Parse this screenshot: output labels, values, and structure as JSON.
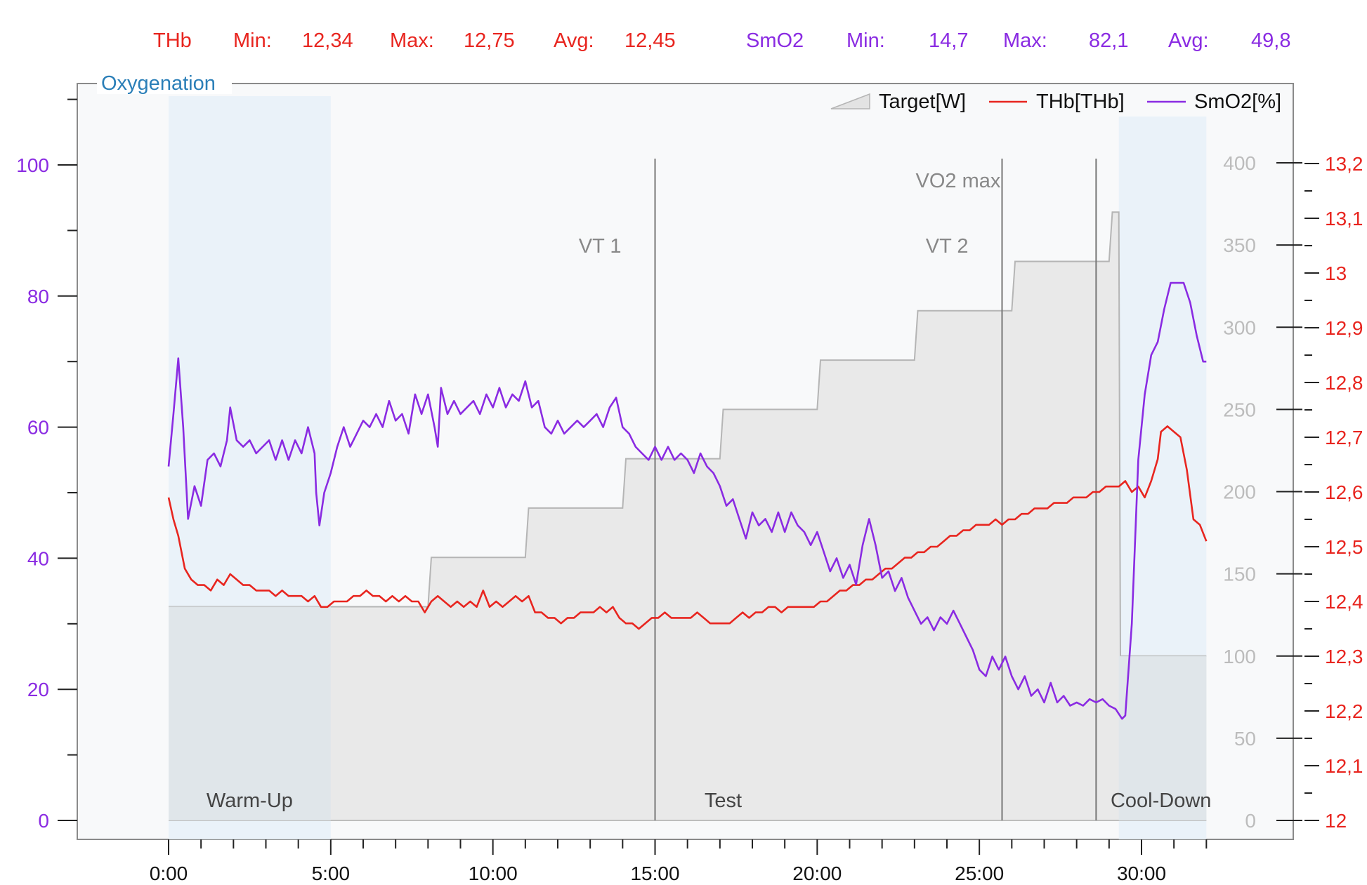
{
  "stats": {
    "thb": {
      "label": "THb",
      "min_label": "Min:",
      "min": "12,34",
      "max_label": "Max:",
      "max": "12,75",
      "avg_label": "Avg:",
      "avg": "12,45"
    },
    "smo2": {
      "label": "SmO2",
      "min_label": "Min:",
      "min": "14,7",
      "max_label": "Max:",
      "max": "82,1",
      "avg_label": "Avg:",
      "avg": "49,8"
    }
  },
  "colors": {
    "thb": "#e8251f",
    "smo2": "#8a2be2",
    "target_fill": "#e6e6e6",
    "target_line": "#b5b5b5",
    "phase_bg": "#e8f1f8",
    "plot_bg": "#f8f9fa",
    "panel_title": "#2b7fb8"
  },
  "panel_title": "Oxygenation",
  "legend": [
    {
      "key": "target",
      "label": "Target[W]"
    },
    {
      "key": "thb",
      "label": "THb[THb]"
    },
    {
      "key": "smo2",
      "label": "SmO2[%]"
    }
  ],
  "chart_data": {
    "type": "line",
    "x_unit": "minutes",
    "x_ticks": [
      "0:00",
      "5:00",
      "10:00",
      "15:00",
      "20:00",
      "25:00",
      "30:00"
    ],
    "xlim": [
      -2.8,
      34.5
    ],
    "axes": {
      "smo2": {
        "ylim": [
          -2.8,
          112
        ],
        "ticks": [
          "0",
          "20",
          "40",
          "60",
          "80",
          "100"
        ]
      },
      "target": {
        "ylim": [
          0,
          400
        ],
        "ticks": [
          "0",
          "50",
          "100",
          "150",
          "200",
          "250",
          "300",
          "350",
          "400"
        ]
      },
      "thb": {
        "ylim": [
          12,
          13.2
        ],
        "ticks": [
          "12",
          "12,1",
          "12,2",
          "12,3",
          "12,4",
          "12,5",
          "12,6",
          "12,7",
          "12,8",
          "12,9",
          "13",
          "13,1",
          "13,2"
        ]
      }
    },
    "phases": [
      {
        "label": "Warm-Up",
        "start": 0,
        "end": 5
      },
      {
        "label": "Test",
        "start": 5,
        "end": 29.3
      },
      {
        "label": "Cool-Down",
        "start": 29.3,
        "end": 32
      }
    ],
    "markers": [
      {
        "label": "VT 1",
        "x": 15.0
      },
      {
        "label": "VT 2",
        "x": 25.7
      },
      {
        "label": "VO2 max",
        "x": 28.6
      }
    ],
    "target_steps": [
      [
        0,
        130
      ],
      [
        8,
        130
      ],
      [
        8.1,
        160
      ],
      [
        11,
        160
      ],
      [
        11.1,
        190
      ],
      [
        14,
        190
      ],
      [
        14.1,
        220
      ],
      [
        17,
        220
      ],
      [
        17.1,
        250
      ],
      [
        20,
        250
      ],
      [
        20.1,
        280
      ],
      [
        23,
        280
      ],
      [
        23.1,
        310
      ],
      [
        26,
        310
      ],
      [
        26.1,
        340
      ],
      [
        29,
        340
      ],
      [
        29.1,
        370
      ],
      [
        29.3,
        370
      ],
      [
        29.35,
        100
      ],
      [
        32,
        100
      ]
    ],
    "smo2": [
      [
        0,
        54
      ],
      [
        0.15,
        62
      ],
      [
        0.3,
        70.5
      ],
      [
        0.45,
        60
      ],
      [
        0.6,
        46
      ],
      [
        0.8,
        51
      ],
      [
        1.0,
        48
      ],
      [
        1.2,
        55
      ],
      [
        1.4,
        56
      ],
      [
        1.6,
        54
      ],
      [
        1.8,
        58
      ],
      [
        1.9,
        63
      ],
      [
        2.1,
        58
      ],
      [
        2.3,
        57
      ],
      [
        2.5,
        58
      ],
      [
        2.7,
        56
      ],
      [
        2.9,
        57
      ],
      [
        3.1,
        58
      ],
      [
        3.3,
        55
      ],
      [
        3.5,
        58
      ],
      [
        3.7,
        55
      ],
      [
        3.9,
        58
      ],
      [
        4.1,
        56
      ],
      [
        4.3,
        60
      ],
      [
        4.5,
        56
      ],
      [
        4.55,
        50
      ],
      [
        4.65,
        45
      ],
      [
        4.8,
        50
      ],
      [
        5.0,
        53
      ],
      [
        5.2,
        57
      ],
      [
        5.4,
        60
      ],
      [
        5.6,
        57
      ],
      [
        5.8,
        59
      ],
      [
        6.0,
        61
      ],
      [
        6.2,
        60
      ],
      [
        6.4,
        62
      ],
      [
        6.6,
        60
      ],
      [
        6.8,
        64
      ],
      [
        7.0,
        61
      ],
      [
        7.2,
        62
      ],
      [
        7.4,
        59
      ],
      [
        7.6,
        65
      ],
      [
        7.8,
        62
      ],
      [
        8.0,
        65
      ],
      [
        8.2,
        60
      ],
      [
        8.3,
        57
      ],
      [
        8.4,
        66
      ],
      [
        8.6,
        62
      ],
      [
        8.8,
        64
      ],
      [
        9.0,
        62
      ],
      [
        9.2,
        63
      ],
      [
        9.4,
        64
      ],
      [
        9.6,
        62
      ],
      [
        9.8,
        65
      ],
      [
        10.0,
        63
      ],
      [
        10.2,
        66
      ],
      [
        10.4,
        63
      ],
      [
        10.6,
        65
      ],
      [
        10.8,
        64
      ],
      [
        11.0,
        67
      ],
      [
        11.2,
        63
      ],
      [
        11.4,
        64
      ],
      [
        11.6,
        60
      ],
      [
        11.8,
        59
      ],
      [
        12.0,
        61
      ],
      [
        12.2,
        59
      ],
      [
        12.4,
        60
      ],
      [
        12.6,
        61
      ],
      [
        12.8,
        60
      ],
      [
        13.0,
        61
      ],
      [
        13.2,
        62
      ],
      [
        13.4,
        60
      ],
      [
        13.6,
        63
      ],
      [
        13.8,
        64.5
      ],
      [
        14.0,
        60
      ],
      [
        14.2,
        59
      ],
      [
        14.4,
        57
      ],
      [
        14.6,
        56
      ],
      [
        14.8,
        55
      ],
      [
        15.0,
        57
      ],
      [
        15.2,
        55
      ],
      [
        15.4,
        57
      ],
      [
        15.6,
        55
      ],
      [
        15.8,
        56
      ],
      [
        16.0,
        55
      ],
      [
        16.2,
        53
      ],
      [
        16.4,
        56
      ],
      [
        16.6,
        54
      ],
      [
        16.8,
        53
      ],
      [
        17.0,
        51
      ],
      [
        17.2,
        48
      ],
      [
        17.4,
        49
      ],
      [
        17.6,
        46
      ],
      [
        17.8,
        43
      ],
      [
        18.0,
        47
      ],
      [
        18.2,
        45
      ],
      [
        18.4,
        46
      ],
      [
        18.6,
        44
      ],
      [
        18.8,
        47
      ],
      [
        19.0,
        44
      ],
      [
        19.2,
        47
      ],
      [
        19.4,
        45
      ],
      [
        19.6,
        44
      ],
      [
        19.8,
        42
      ],
      [
        20.0,
        44
      ],
      [
        20.2,
        41
      ],
      [
        20.4,
        38
      ],
      [
        20.6,
        40
      ],
      [
        20.8,
        37
      ],
      [
        21.0,
        39
      ],
      [
        21.2,
        36
      ],
      [
        21.4,
        42
      ],
      [
        21.6,
        46
      ],
      [
        21.8,
        42
      ],
      [
        22.0,
        37
      ],
      [
        22.2,
        38
      ],
      [
        22.4,
        35
      ],
      [
        22.6,
        37
      ],
      [
        22.8,
        34
      ],
      [
        23.0,
        32
      ],
      [
        23.2,
        30
      ],
      [
        23.4,
        31
      ],
      [
        23.6,
        29
      ],
      [
        23.8,
        31
      ],
      [
        24.0,
        30
      ],
      [
        24.2,
        32
      ],
      [
        24.4,
        30
      ],
      [
        24.6,
        28
      ],
      [
        24.8,
        26
      ],
      [
        25.0,
        23
      ],
      [
        25.2,
        22
      ],
      [
        25.4,
        25
      ],
      [
        25.6,
        23
      ],
      [
        25.8,
        25
      ],
      [
        26.0,
        22
      ],
      [
        26.2,
        20
      ],
      [
        26.4,
        22
      ],
      [
        26.6,
        19
      ],
      [
        26.8,
        20
      ],
      [
        27.0,
        18
      ],
      [
        27.2,
        21
      ],
      [
        27.4,
        18
      ],
      [
        27.6,
        19
      ],
      [
        27.8,
        17.5
      ],
      [
        28.0,
        18
      ],
      [
        28.2,
        17.5
      ],
      [
        28.4,
        18.5
      ],
      [
        28.6,
        18
      ],
      [
        28.8,
        18.5
      ],
      [
        29.0,
        17.5
      ],
      [
        29.2,
        17
      ],
      [
        29.4,
        15.5
      ],
      [
        29.5,
        16
      ],
      [
        29.7,
        30
      ],
      [
        29.9,
        55
      ],
      [
        30.1,
        65
      ],
      [
        30.3,
        71
      ],
      [
        30.5,
        73
      ],
      [
        30.7,
        78
      ],
      [
        30.9,
        82
      ],
      [
        31.1,
        82
      ],
      [
        31.3,
        82
      ],
      [
        31.5,
        79
      ],
      [
        31.7,
        74
      ],
      [
        31.9,
        70
      ],
      [
        32.0,
        70
      ]
    ],
    "thb": [
      [
        0,
        12.59
      ],
      [
        0.15,
        12.55
      ],
      [
        0.3,
        12.52
      ],
      [
        0.5,
        12.46
      ],
      [
        0.7,
        12.44
      ],
      [
        0.9,
        12.43
      ],
      [
        1.1,
        12.43
      ],
      [
        1.3,
        12.42
      ],
      [
        1.5,
        12.44
      ],
      [
        1.7,
        12.43
      ],
      [
        1.9,
        12.45
      ],
      [
        2.1,
        12.44
      ],
      [
        2.3,
        12.43
      ],
      [
        2.5,
        12.43
      ],
      [
        2.7,
        12.42
      ],
      [
        2.9,
        12.42
      ],
      [
        3.1,
        12.42
      ],
      [
        3.3,
        12.41
      ],
      [
        3.5,
        12.42
      ],
      [
        3.7,
        12.41
      ],
      [
        3.9,
        12.41
      ],
      [
        4.1,
        12.41
      ],
      [
        4.3,
        12.4
      ],
      [
        4.5,
        12.41
      ],
      [
        4.7,
        12.39
      ],
      [
        4.9,
        12.39
      ],
      [
        5.1,
        12.4
      ],
      [
        5.3,
        12.4
      ],
      [
        5.5,
        12.4
      ],
      [
        5.7,
        12.41
      ],
      [
        5.9,
        12.41
      ],
      [
        6.1,
        12.42
      ],
      [
        6.3,
        12.41
      ],
      [
        6.5,
        12.41
      ],
      [
        6.7,
        12.4
      ],
      [
        6.9,
        12.41
      ],
      [
        7.1,
        12.4
      ],
      [
        7.3,
        12.41
      ],
      [
        7.5,
        12.4
      ],
      [
        7.7,
        12.4
      ],
      [
        7.9,
        12.38
      ],
      [
        8.1,
        12.4
      ],
      [
        8.3,
        12.41
      ],
      [
        8.5,
        12.4
      ],
      [
        8.7,
        12.39
      ],
      [
        8.9,
        12.4
      ],
      [
        9.1,
        12.39
      ],
      [
        9.3,
        12.4
      ],
      [
        9.5,
        12.39
      ],
      [
        9.7,
        12.42
      ],
      [
        9.9,
        12.39
      ],
      [
        10.1,
        12.4
      ],
      [
        10.3,
        12.39
      ],
      [
        10.5,
        12.4
      ],
      [
        10.7,
        12.41
      ],
      [
        10.9,
        12.4
      ],
      [
        11.1,
        12.41
      ],
      [
        11.3,
        12.38
      ],
      [
        11.5,
        12.38
      ],
      [
        11.7,
        12.37
      ],
      [
        11.9,
        12.37
      ],
      [
        12.1,
        12.36
      ],
      [
        12.3,
        12.37
      ],
      [
        12.5,
        12.37
      ],
      [
        12.7,
        12.38
      ],
      [
        12.9,
        12.38
      ],
      [
        13.1,
        12.38
      ],
      [
        13.3,
        12.39
      ],
      [
        13.5,
        12.38
      ],
      [
        13.7,
        12.39
      ],
      [
        13.9,
        12.37
      ],
      [
        14.1,
        12.36
      ],
      [
        14.3,
        12.36
      ],
      [
        14.5,
        12.35
      ],
      [
        14.7,
        12.36
      ],
      [
        14.9,
        12.37
      ],
      [
        15.1,
        12.37
      ],
      [
        15.3,
        12.38
      ],
      [
        15.5,
        12.37
      ],
      [
        15.7,
        12.37
      ],
      [
        15.9,
        12.37
      ],
      [
        16.1,
        12.37
      ],
      [
        16.3,
        12.38
      ],
      [
        16.5,
        12.37
      ],
      [
        16.7,
        12.36
      ],
      [
        16.9,
        12.36
      ],
      [
        17.1,
        12.36
      ],
      [
        17.3,
        12.36
      ],
      [
        17.5,
        12.37
      ],
      [
        17.7,
        12.38
      ],
      [
        17.9,
        12.37
      ],
      [
        18.1,
        12.38
      ],
      [
        18.3,
        12.38
      ],
      [
        18.5,
        12.39
      ],
      [
        18.7,
        12.39
      ],
      [
        18.9,
        12.38
      ],
      [
        19.1,
        12.39
      ],
      [
        19.3,
        12.39
      ],
      [
        19.5,
        12.39
      ],
      [
        19.7,
        12.39
      ],
      [
        19.9,
        12.39
      ],
      [
        20.1,
        12.4
      ],
      [
        20.3,
        12.4
      ],
      [
        20.5,
        12.41
      ],
      [
        20.7,
        12.42
      ],
      [
        20.9,
        12.42
      ],
      [
        21.1,
        12.43
      ],
      [
        21.3,
        12.43
      ],
      [
        21.5,
        12.44
      ],
      [
        21.7,
        12.44
      ],
      [
        21.9,
        12.45
      ],
      [
        22.1,
        12.46
      ],
      [
        22.3,
        12.46
      ],
      [
        22.5,
        12.47
      ],
      [
        22.7,
        12.48
      ],
      [
        22.9,
        12.48
      ],
      [
        23.1,
        12.49
      ],
      [
        23.3,
        12.49
      ],
      [
        23.5,
        12.5
      ],
      [
        23.7,
        12.5
      ],
      [
        23.9,
        12.51
      ],
      [
        24.1,
        12.52
      ],
      [
        24.3,
        12.52
      ],
      [
        24.5,
        12.53
      ],
      [
        24.7,
        12.53
      ],
      [
        24.9,
        12.54
      ],
      [
        25.1,
        12.54
      ],
      [
        25.3,
        12.54
      ],
      [
        25.5,
        12.55
      ],
      [
        25.7,
        12.54
      ],
      [
        25.9,
        12.55
      ],
      [
        26.1,
        12.55
      ],
      [
        26.3,
        12.56
      ],
      [
        26.5,
        12.56
      ],
      [
        26.7,
        12.57
      ],
      [
        26.9,
        12.57
      ],
      [
        27.1,
        12.57
      ],
      [
        27.3,
        12.58
      ],
      [
        27.5,
        12.58
      ],
      [
        27.7,
        12.58
      ],
      [
        27.9,
        12.59
      ],
      [
        28.1,
        12.59
      ],
      [
        28.3,
        12.59
      ],
      [
        28.5,
        12.6
      ],
      [
        28.7,
        12.6
      ],
      [
        28.9,
        12.61
      ],
      [
        29.1,
        12.61
      ],
      [
        29.3,
        12.61
      ],
      [
        29.5,
        12.62
      ],
      [
        29.7,
        12.6
      ],
      [
        29.9,
        12.61
      ],
      [
        30.1,
        12.59
      ],
      [
        30.3,
        12.62
      ],
      [
        30.5,
        12.66
      ],
      [
        30.6,
        12.71
      ],
      [
        30.8,
        12.72
      ],
      [
        31.0,
        12.71
      ],
      [
        31.2,
        12.7
      ],
      [
        31.4,
        12.64
      ],
      [
        31.6,
        12.55
      ],
      [
        31.8,
        12.54
      ],
      [
        32.0,
        12.51
      ]
    ]
  }
}
